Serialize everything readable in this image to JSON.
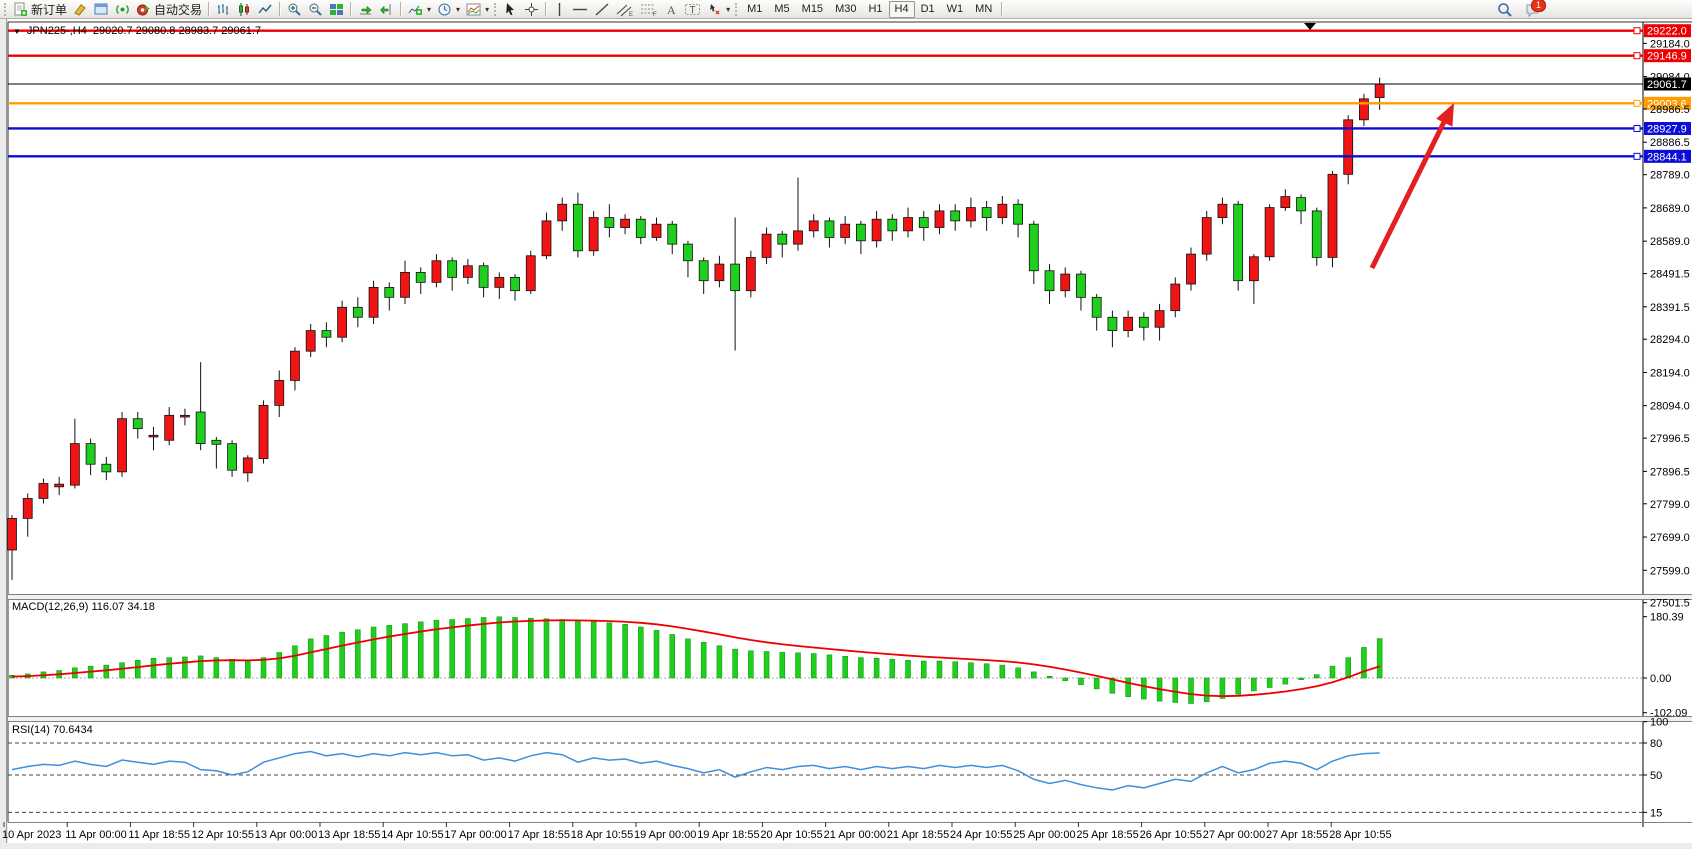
{
  "toolbar": {
    "new_order": "新订单",
    "autotrading": "自动交易",
    "timeframes": [
      "M1",
      "M5",
      "M15",
      "M30",
      "H1",
      "H4",
      "D1",
      "W1",
      "MN"
    ],
    "active_timeframe": "H4",
    "notification_badge": "1"
  },
  "chart": {
    "symbol_period": "JPN225-,H4",
    "ohlc_text": "29020.7 29080.8 28983.7 29061.7",
    "current_price": "29061.7",
    "price_axis_ticks": [
      "29184.0",
      "29084.0",
      "28986.5",
      "28886.5",
      "28789.0",
      "28689.0",
      "28589.0",
      "28491.5",
      "28391.5",
      "28294.0",
      "28194.0",
      "28094.0",
      "27996.5",
      "27896.5",
      "27799.0",
      "27699.0",
      "27599.0",
      "27501.5"
    ],
    "hlines": [
      {
        "label": "29222.0",
        "value": 29222.0,
        "color": "#ee0000"
      },
      {
        "label": "29146.9",
        "value": 29146.9,
        "color": "#ee0000"
      },
      {
        "label": "29003.6",
        "value": 29003.6,
        "color": "#ff9d00"
      },
      {
        "label": "28927.9",
        "value": 28927.9,
        "color": "#0d0dd8"
      },
      {
        "label": "28844.1",
        "value": 28844.1,
        "color": "#0d0dd8"
      }
    ],
    "time_axis": [
      "10 Apr 2023",
      "11 Apr 00:00",
      "11 Apr 18:55",
      "12 Apr 10:55",
      "13 Apr 00:00",
      "13 Apr 18:55",
      "14 Apr 10:55",
      "17 Apr 00:00",
      "17 Apr 18:55",
      "18 Apr 10:55",
      "19 Apr 00:00",
      "19 Apr 18:55",
      "20 Apr 10:55",
      "21 Apr 00:00",
      "21 Apr 18:55",
      "24 Apr 10:55",
      "25 Apr 00:00",
      "25 Apr 18:55",
      "26 Apr 10:55",
      "27 Apr 00:00",
      "27 Apr 18:55",
      "28 Apr 10:55"
    ]
  },
  "indicators": {
    "macd": {
      "label": "MACD(12,26,9) 116.07 34.18",
      "axis_ticks": [
        "180.39",
        "0.00",
        "-102.09"
      ]
    },
    "rsi": {
      "label": "RSI(14) 70.6434",
      "axis_ticks": [
        "100",
        "80",
        "50",
        "15"
      ],
      "levels": [
        80,
        50,
        15
      ]
    }
  },
  "chart_data": {
    "type": "candlestick",
    "symbol": "JPN225-",
    "period": "H4",
    "title": "JPN225-,H4 29020.7 29080.8 28983.7 29061.7",
    "up_color": "#f01414",
    "down_color": "#1ecf1e",
    "visible_price_range": [
      27460,
      29260
    ],
    "candles_ohlc": [
      [
        27660,
        27765,
        27570,
        27755
      ],
      [
        27755,
        27830,
        27700,
        27815
      ],
      [
        27815,
        27875,
        27800,
        27860
      ],
      [
        27850,
        27880,
        27825,
        27858
      ],
      [
        27855,
        28055,
        27845,
        27980
      ],
      [
        27980,
        27995,
        27885,
        27918
      ],
      [
        27918,
        27940,
        27870,
        27895
      ],
      [
        27895,
        28075,
        27880,
        28055
      ],
      [
        28055,
        28075,
        27995,
        28025
      ],
      [
        28000,
        28030,
        27960,
        28005
      ],
      [
        27990,
        28090,
        27975,
        28065
      ],
      [
        28060,
        28085,
        28035,
        28065
      ],
      [
        28075,
        28225,
        27960,
        27980
      ],
      [
        27990,
        28000,
        27905,
        27978
      ],
      [
        27980,
        27990,
        27880,
        27900
      ],
      [
        27892,
        27945,
        27865,
        27937
      ],
      [
        27935,
        28110,
        27920,
        28095
      ],
      [
        28095,
        28200,
        28060,
        28170
      ],
      [
        28170,
        28270,
        28140,
        28258
      ],
      [
        28258,
        28340,
        28240,
        28320
      ],
      [
        28320,
        28345,
        28270,
        28300
      ],
      [
        28300,
        28410,
        28285,
        28390
      ],
      [
        28390,
        28420,
        28330,
        28360
      ],
      [
        28360,
        28470,
        28340,
        28450
      ],
      [
        28450,
        28465,
        28380,
        28420
      ],
      [
        28420,
        28530,
        28400,
        28495
      ],
      [
        28495,
        28510,
        28430,
        28465
      ],
      [
        28465,
        28550,
        28450,
        28530
      ],
      [
        28530,
        28540,
        28440,
        28480
      ],
      [
        28480,
        28535,
        28460,
        28515
      ],
      [
        28515,
        28525,
        28420,
        28450
      ],
      [
        28450,
        28495,
        28415,
        28480
      ],
      [
        28480,
        28490,
        28410,
        28440
      ],
      [
        28440,
        28560,
        28430,
        28545
      ],
      [
        28545,
        28675,
        28535,
        28650
      ],
      [
        28650,
        28720,
        28620,
        28700
      ],
      [
        28700,
        28735,
        28540,
        28560
      ],
      [
        28560,
        28680,
        28545,
        28660
      ],
      [
        28660,
        28700,
        28600,
        28630
      ],
      [
        28630,
        28670,
        28610,
        28655
      ],
      [
        28655,
        28665,
        28580,
        28600
      ],
      [
        28600,
        28660,
        28590,
        28640
      ],
      [
        28640,
        28650,
        28550,
        28580
      ],
      [
        28580,
        28590,
        28480,
        28530
      ],
      [
        28530,
        28540,
        28430,
        28470
      ],
      [
        28470,
        28545,
        28450,
        28520
      ],
      [
        28520,
        28660,
        28260,
        28440
      ],
      [
        28440,
        28560,
        28420,
        28540
      ],
      [
        28540,
        28630,
        28520,
        28610
      ],
      [
        28610,
        28620,
        28540,
        28580
      ],
      [
        28580,
        28780,
        28560,
        28620
      ],
      [
        28620,
        28670,
        28600,
        28650
      ],
      [
        28650,
        28660,
        28570,
        28600
      ],
      [
        28600,
        28665,
        28580,
        28640
      ],
      [
        28640,
        28650,
        28550,
        28590
      ],
      [
        28590,
        28680,
        28570,
        28655
      ],
      [
        28655,
        28670,
        28590,
        28620
      ],
      [
        28620,
        28690,
        28600,
        28660
      ],
      [
        28660,
        28680,
        28590,
        28630
      ],
      [
        28630,
        28700,
        28610,
        28680
      ],
      [
        28680,
        28700,
        28620,
        28650
      ],
      [
        28650,
        28720,
        28630,
        28690
      ],
      [
        28690,
        28710,
        28620,
        28660
      ],
      [
        28660,
        28725,
        28640,
        28700
      ],
      [
        28700,
        28715,
        28600,
        28640
      ],
      [
        28640,
        28650,
        28460,
        28500
      ],
      [
        28500,
        28520,
        28400,
        28440
      ],
      [
        28440,
        28510,
        28420,
        28490
      ],
      [
        28490,
        28500,
        28380,
        28420
      ],
      [
        28420,
        28430,
        28320,
        28360
      ],
      [
        28360,
        28380,
        28270,
        28320
      ],
      [
        28320,
        28380,
        28300,
        28360
      ],
      [
        28360,
        28375,
        28290,
        28330
      ],
      [
        28330,
        28400,
        28290,
        28380
      ],
      [
        28380,
        28480,
        28360,
        28460
      ],
      [
        28460,
        28570,
        28440,
        28550
      ],
      [
        28550,
        28680,
        28530,
        28660
      ],
      [
        28660,
        28720,
        28640,
        28700
      ],
      [
        28700,
        28710,
        28440,
        28470
      ],
      [
        28470,
        28550,
        28400,
        28542
      ],
      [
        28542,
        28700,
        28530,
        28690
      ],
      [
        28690,
        28745,
        28680,
        28723
      ],
      [
        28720,
        28730,
        28640,
        28680
      ],
      [
        28680,
        28690,
        28515,
        28540
      ],
      [
        28540,
        28800,
        28510,
        28790
      ],
      [
        28790,
        28968,
        28760,
        28954
      ],
      [
        28954,
        29032,
        28935,
        29017
      ],
      [
        29020.7,
        29080.8,
        28983.7,
        29061.7
      ]
    ],
    "macd_histogram": [
      8,
      12,
      18,
      22,
      30,
      35,
      38,
      45,
      52,
      58,
      60,
      62,
      65,
      60,
      55,
      50,
      60,
      75,
      95,
      115,
      125,
      135,
      142,
      150,
      155,
      160,
      165,
      170,
      172,
      175,
      178,
      180,
      178,
      176,
      174,
      172,
      168,
      165,
      162,
      158,
      150,
      140,
      128,
      115,
      105,
      95,
      85,
      80,
      78,
      76,
      74,
      72,
      68,
      64,
      60,
      58,
      55,
      52,
      50,
      50,
      48,
      45,
      42,
      38,
      30,
      18,
      5,
      -8,
      -20,
      -32,
      -45,
      -55,
      -62,
      -68,
      -72,
      -75,
      -70,
      -60,
      -48,
      -38,
      -28,
      -18,
      -5,
      10,
      35,
      60,
      90,
      116.07
    ],
    "macd_signal": [
      4,
      5.6,
      8.1,
      10.9,
      14.7,
      18.8,
      22.6,
      27.1,
      32.1,
      37.3,
      41.8,
      45.8,
      49.7,
      51.7,
      52.4,
      51.9,
      53.5,
      57.8,
      65.3,
      75.2,
      85.2,
      95.1,
      104.5,
      113.6,
      121.9,
      129.5,
      136.6,
      143.3,
      149,
      154.2,
      159,
      163.2,
      166.2,
      168.1,
      169.3,
      169.8,
      169.5,
      168.6,
      167.2,
      165.4,
      162.3,
      157.9,
      151.9,
      144.5,
      136.6,
      128.3,
      119.6,
      111.7,
      105,
      99.2,
      94.1,
      89.7,
      85.4,
      81.1,
      76.9,
      73.1,
      69.5,
      66,
      62.8,
      60.2,
      57.8,
      55.2,
      52.6,
      49.7,
      45.7,
      40.2,
      33.2,
      24.9,
      15.9,
      6.3,
      -4,
      -14.2,
      -23.8,
      -32.6,
      -40.5,
      -47.4,
      -51.9,
      -53.5,
      -52.4,
      -49.5,
      -45.2,
      -39.8,
      -32.8,
      -24.2,
      -12.4,
      2.1,
      19.7,
      34.18
    ],
    "rsi": [
      55,
      58,
      60,
      59,
      63,
      60,
      58,
      64,
      62,
      60,
      63,
      62,
      55,
      54,
      50,
      53,
      62,
      66,
      70,
      72,
      68,
      70,
      67,
      70,
      68,
      71,
      69,
      71,
      68,
      69,
      64,
      66,
      63,
      68,
      71,
      69,
      62,
      66,
      64,
      65,
      61,
      63,
      59,
      56,
      52,
      55,
      48,
      53,
      57,
      55,
      58,
      59,
      56,
      58,
      55,
      58,
      56,
      58,
      56,
      59,
      57,
      59,
      57,
      59,
      54,
      46,
      42,
      45,
      41,
      38,
      36,
      40,
      38,
      42,
      46,
      44,
      52,
      58,
      52,
      55,
      61,
      63,
      61,
      55,
      63,
      68,
      70,
      70.6434
    ]
  },
  "annotations": {
    "trend_arrow_color": "#e32020",
    "macd_bar_color": "#1ecf1e",
    "macd_signal_color": "#ee0000",
    "rsi_line_color": "#3f8fdc"
  }
}
